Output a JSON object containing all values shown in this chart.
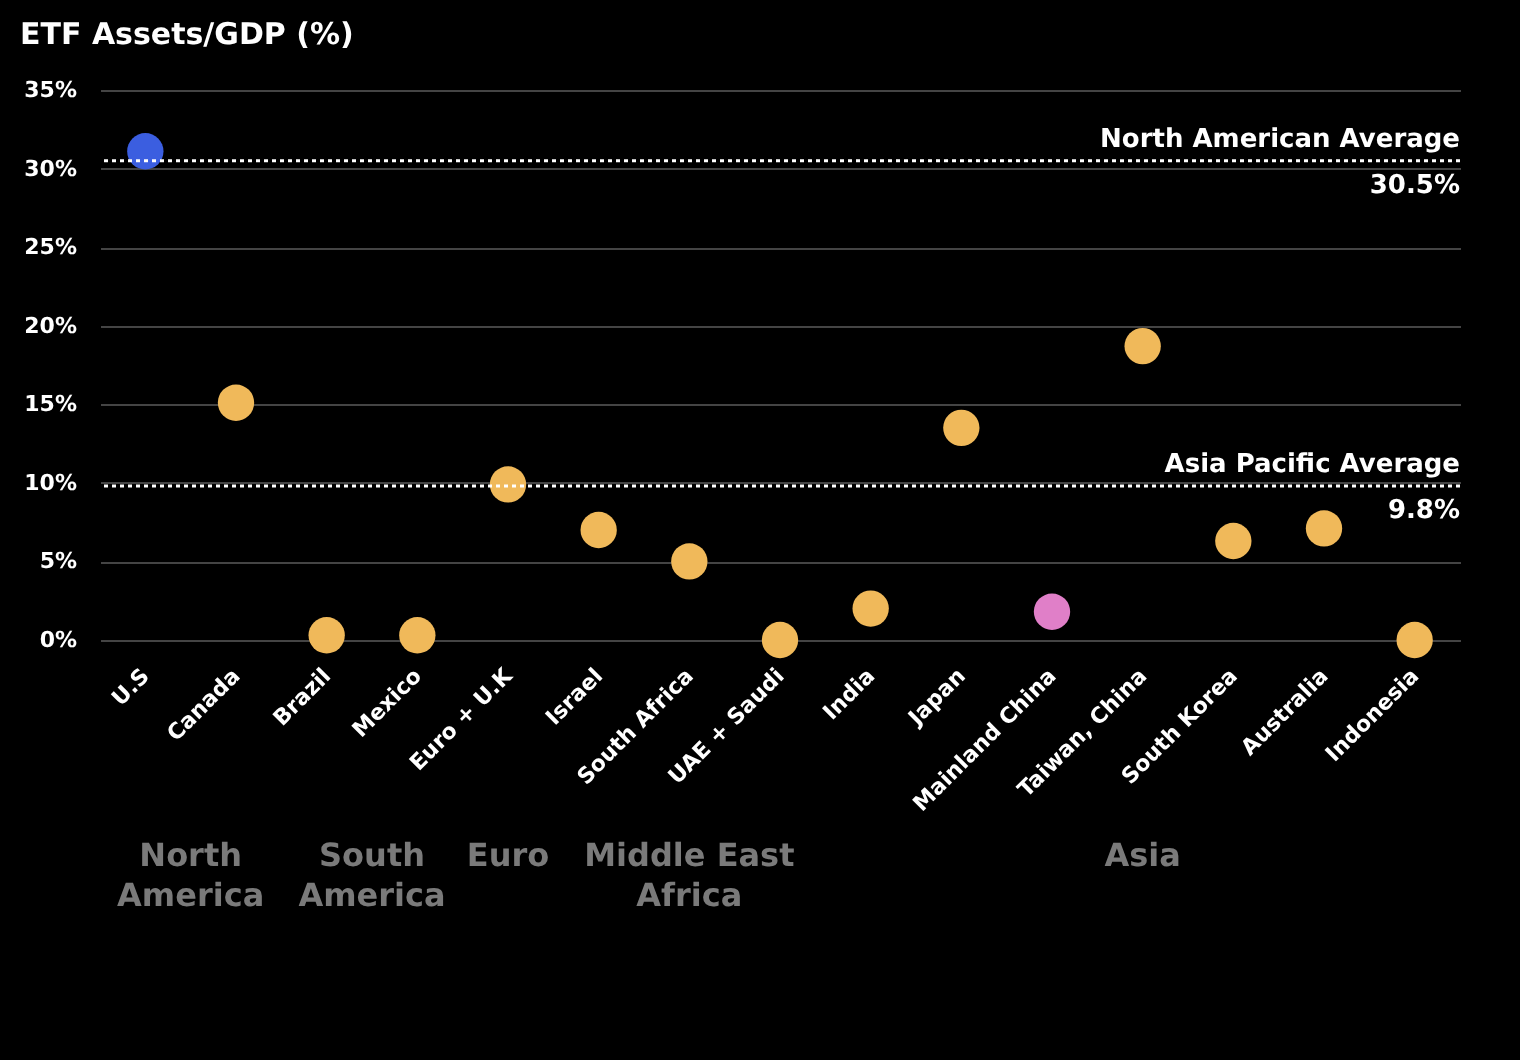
{
  "chart_data": {
    "type": "scatter",
    "title": "ETF Assets/GDP (%)",
    "categories": [
      "U.S",
      "Canada",
      "Brazil",
      "Mexico",
      "Euro + U.K",
      "Israel",
      "South Africa",
      "UAE + Saudi",
      "India",
      "Japan",
      "Mainland China",
      "Taiwan, China",
      "South Korea",
      "Australia",
      "Indonesia"
    ],
    "series": [
      {
        "values": [
          31.1,
          15.1,
          0.3,
          0.3,
          9.9,
          7.0,
          5.0,
          0,
          2.0,
          13.5,
          1.8,
          18.7,
          6.3,
          7.1,
          0
        ],
        "colors": [
          "#3b5ee0",
          "#f0b95a",
          "#f0b95a",
          "#f0b95a",
          "#f0b95a",
          "#f0b95a",
          "#f0b95a",
          "#f0b95a",
          "#f0b95a",
          "#f0b95a",
          "#e07fc8",
          "#f0b95a",
          "#f0b95a",
          "#f0b95a",
          "#f0b95a"
        ]
      }
    ],
    "ylim": [
      0,
      35
    ],
    "yticks": [
      {
        "value": 0,
        "label": "0%"
      },
      {
        "value": 5,
        "label": "5%"
      },
      {
        "value": 10,
        "label": "10%"
      },
      {
        "value": 15,
        "label": "15%"
      },
      {
        "value": 20,
        "label": "20%"
      },
      {
        "value": 25,
        "label": "25%"
      },
      {
        "value": 30,
        "label": "30%"
      },
      {
        "value": 35,
        "label": "35%"
      }
    ],
    "ref_lines": [
      {
        "axis": "y",
        "value": 30.5,
        "label": "North American Average\n30.5%",
        "color": "#ffffff",
        "line_style": "dotted"
      },
      {
        "axis": "y",
        "value": 9.8,
        "label": "Asia Pacific Average\n9.8%",
        "color": "#ffffff",
        "line_style": "dotted"
      }
    ],
    "annotations": [
      "North\nAmerica",
      "South\nAmerica",
      "Euro",
      "Middle East\nAfrica",
      "Asia"
    ],
    "grid": "y",
    "marker": "circle"
  }
}
